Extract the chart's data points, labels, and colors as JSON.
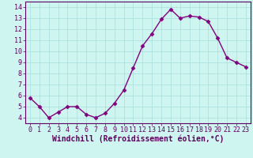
{
  "x": [
    0,
    1,
    2,
    3,
    4,
    5,
    6,
    7,
    8,
    9,
    10,
    11,
    12,
    13,
    14,
    15,
    16,
    17,
    18,
    19,
    20,
    21,
    22,
    23
  ],
  "y": [
    5.8,
    5.0,
    4.0,
    4.5,
    5.0,
    5.0,
    4.3,
    4.0,
    4.4,
    5.3,
    6.5,
    8.5,
    10.5,
    11.6,
    12.9,
    13.8,
    13.0,
    13.2,
    13.1,
    12.7,
    11.2,
    9.4,
    9.0,
    8.6
  ],
  "line_color": "#800080",
  "marker": "D",
  "marker_size": 2.5,
  "bg_color": "#cef5f0",
  "grid_color": "#aadddd",
  "xlabel": "Windchill (Refroidissement éolien,°C)",
  "ylim": [
    3.5,
    14.5
  ],
  "xlim": [
    -0.5,
    23.5
  ],
  "yticks": [
    4,
    5,
    6,
    7,
    8,
    9,
    10,
    11,
    12,
    13,
    14
  ],
  "xticks": [
    0,
    1,
    2,
    3,
    4,
    5,
    6,
    7,
    8,
    9,
    10,
    11,
    12,
    13,
    14,
    15,
    16,
    17,
    18,
    19,
    20,
    21,
    22,
    23
  ],
  "tick_fontsize": 6,
  "xlabel_fontsize": 7,
  "spine_color": "#600060",
  "tick_color": "#600060",
  "line_width": 1.0
}
